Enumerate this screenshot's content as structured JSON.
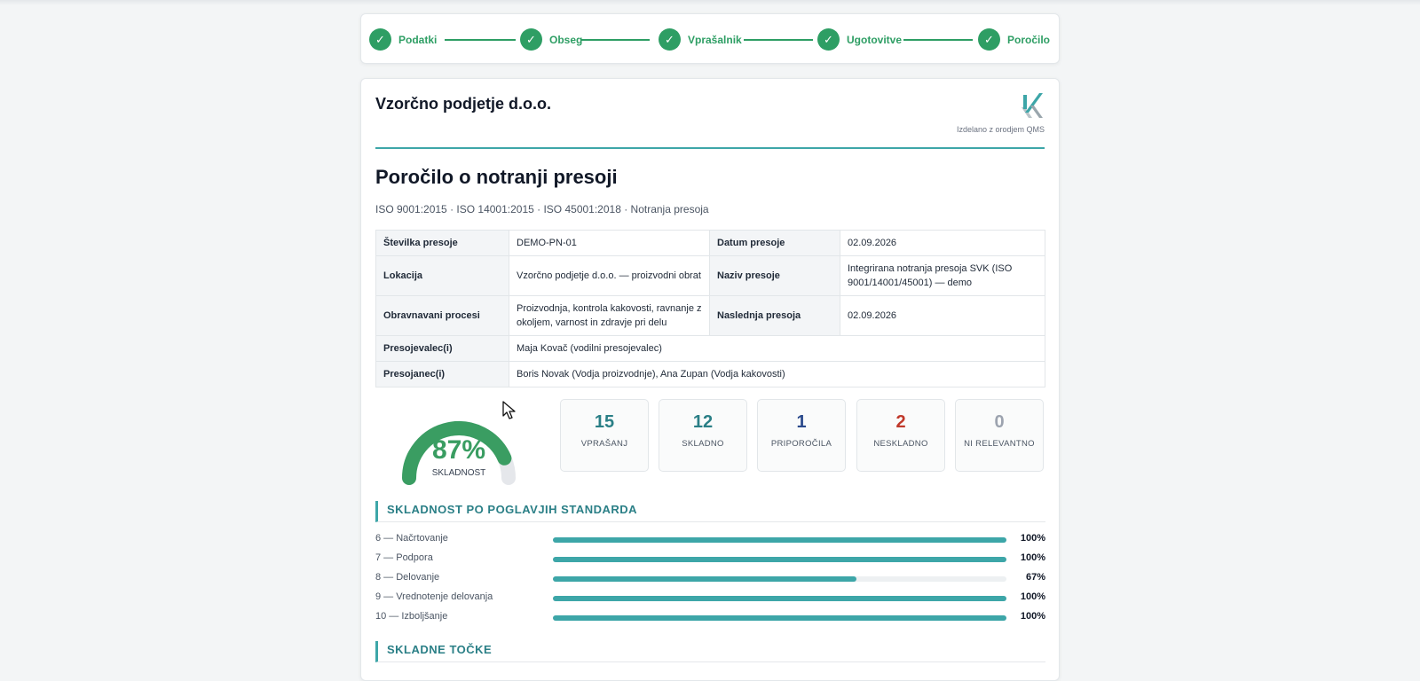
{
  "stepper": {
    "steps": [
      {
        "label": "Podatki",
        "check": "✓"
      },
      {
        "label": "Obseg",
        "check": "✓"
      },
      {
        "label": "Vprašalnik",
        "check": "✓"
      },
      {
        "label": "Ugotovitve",
        "check": "✓"
      },
      {
        "label": "Poročilo",
        "check": "✓"
      }
    ]
  },
  "report": {
    "company": "Vzorčno podjetje d.o.o.",
    "made_with": "Izdelano z orodjem QMS",
    "title": "Poročilo o notranji presoji",
    "subtitle": "ISO 9001:2015 · ISO 14001:2015 · ISO 45001:2018 · Notranja presoja",
    "info": {
      "audit_no_label": "Številka presoje",
      "audit_no": "DEMO-PN-01",
      "audit_date_label": "Datum presoje",
      "audit_date": "02.09.2026",
      "location_label": "Lokacija",
      "location": "Vzorčno podjetje d.o.o. — proizvodni obrat",
      "audit_name_label": "Naziv presoje",
      "audit_name": "Integrirana notranja presoja SVK (ISO 9001/14001/45001) — demo",
      "processes_label": "Obravnavani procesi",
      "processes": "Proizvodnja, kontrola kakovosti, ravnanje z okoljem, varnost in zdravje pri delu",
      "next_audit_label": "Naslednja presoja",
      "next_audit": "02.09.2026",
      "auditors_label": "Presojevalec(i)",
      "auditors": "Maja Kovač (vodilni presojevalec)",
      "auditees_label": "Presojanec(i)",
      "auditees": "Boris Novak (Vodja proizvodnje), Ana Zupan (Vodja kakovosti)"
    },
    "gauge": {
      "value": 87,
      "display": "87%",
      "label": "SKLADNOST",
      "color": "#3a9d62"
    },
    "stats": [
      {
        "value": "15",
        "label": "VPRAŠANJ",
        "color": "#2a7f86"
      },
      {
        "value": "12",
        "label": "SKLADNO",
        "color": "#2a7f86"
      },
      {
        "value": "1",
        "label": "PRIPOROČILA",
        "color": "#2b4a8c"
      },
      {
        "value": "2",
        "label": "NESKLADNO",
        "color": "#c0392b"
      },
      {
        "value": "0",
        "label": "NI RELEVANTNO",
        "color": "#9ca3af"
      }
    ],
    "chapters_heading": "SKLADNOST PO POGLAVJIH STANDARDA",
    "chapters": [
      {
        "name": "6 — Načrtovanje",
        "value": 100,
        "display": "100%"
      },
      {
        "name": "7 — Podpora",
        "value": 100,
        "display": "100%"
      },
      {
        "name": "8 — Delovanje",
        "value": 67,
        "display": "67%"
      },
      {
        "name": "9 — Vrednotenje delovanja",
        "value": 100,
        "display": "100%"
      },
      {
        "name": "10 — Izboljšanje",
        "value": 100,
        "display": "100%"
      }
    ],
    "compliant_heading": "SKLADNE TOČKE"
  }
}
